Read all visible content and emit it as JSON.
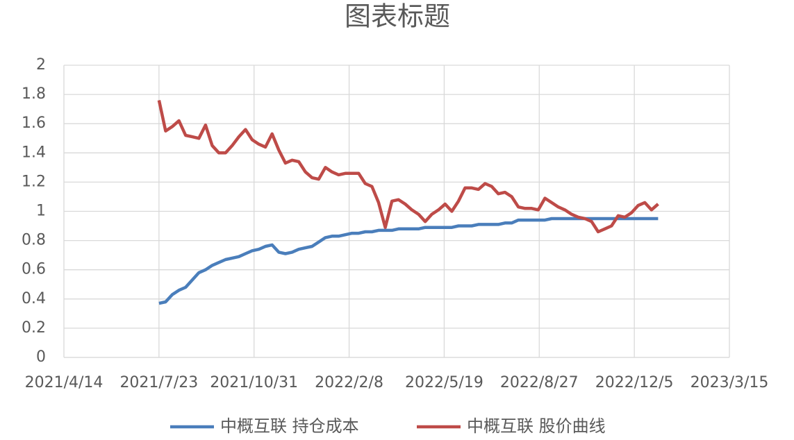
{
  "chart_data": {
    "type": "line",
    "title": "图表标题",
    "x": [
      "2021/7/23",
      "2021/7/30",
      "2021/8/6",
      "2021/8/13",
      "2021/8/20",
      "2021/8/27",
      "2021/9/3",
      "2021/9/10",
      "2021/9/17",
      "2021/9/24",
      "2021/10/1",
      "2021/10/8",
      "2021/10/15",
      "2021/10/22",
      "2021/10/29",
      "2021/11/5",
      "2021/11/12",
      "2021/11/19",
      "2021/11/26",
      "2021/12/3",
      "2021/12/10",
      "2021/12/17",
      "2021/12/24",
      "2021/12/31",
      "2022/1/7",
      "2022/1/14",
      "2022/1/21",
      "2022/1/28",
      "2022/2/4",
      "2022/2/11",
      "2022/2/18",
      "2022/2/25",
      "2022/3/4",
      "2022/3/11",
      "2022/3/18",
      "2022/3/25",
      "2022/4/1",
      "2022/4/8",
      "2022/4/15",
      "2022/4/22",
      "2022/4/29",
      "2022/5/6",
      "2022/5/13",
      "2022/5/20",
      "2022/5/27",
      "2022/6/3",
      "2022/6/10",
      "2022/6/17",
      "2022/6/24",
      "2022/7/1",
      "2022/7/8",
      "2022/7/15",
      "2022/7/22",
      "2022/7/29",
      "2022/8/5",
      "2022/8/12",
      "2022/8/19",
      "2022/8/26",
      "2022/9/2",
      "2022/9/9",
      "2022/9/16",
      "2022/9/23",
      "2022/9/30",
      "2022/10/7",
      "2022/10/14",
      "2022/10/21",
      "2022/10/28",
      "2022/11/4",
      "2022/11/11",
      "2022/11/18",
      "2022/11/25",
      "2022/12/2",
      "2022/12/9",
      "2022/12/16",
      "2022/12/23",
      "2022/12/30"
    ],
    "series": [
      {
        "name": "中概互联 持仓成本",
        "color": "#4a7ebb",
        "values": [
          0.37,
          0.38,
          0.43,
          0.46,
          0.48,
          0.53,
          0.58,
          0.6,
          0.63,
          0.65,
          0.67,
          0.68,
          0.69,
          0.71,
          0.73,
          0.74,
          0.76,
          0.77,
          0.72,
          0.71,
          0.72,
          0.74,
          0.75,
          0.76,
          0.79,
          0.82,
          0.83,
          0.83,
          0.84,
          0.85,
          0.85,
          0.86,
          0.86,
          0.87,
          0.87,
          0.87,
          0.88,
          0.88,
          0.88,
          0.88,
          0.89,
          0.89,
          0.89,
          0.89,
          0.89,
          0.9,
          0.9,
          0.9,
          0.91,
          0.91,
          0.91,
          0.91,
          0.92,
          0.92,
          0.94,
          0.94,
          0.94,
          0.94,
          0.94,
          0.95,
          0.95,
          0.95,
          0.95,
          0.95,
          0.95,
          0.95,
          0.95,
          0.95,
          0.95,
          0.95,
          0.95,
          0.95,
          0.95,
          0.95,
          0.95,
          0.95
        ]
      },
      {
        "name": "中概互联 股价曲线",
        "color": "#be4b48",
        "values": [
          1.76,
          1.55,
          1.58,
          1.62,
          1.52,
          1.51,
          1.5,
          1.59,
          1.45,
          1.4,
          1.4,
          1.45,
          1.51,
          1.56,
          1.49,
          1.46,
          1.44,
          1.53,
          1.42,
          1.33,
          1.35,
          1.34,
          1.27,
          1.23,
          1.22,
          1.3,
          1.27,
          1.25,
          1.26,
          1.26,
          1.26,
          1.19,
          1.17,
          1.06,
          0.89,
          1.07,
          1.08,
          1.05,
          1.01,
          0.98,
          0.93,
          0.98,
          1.01,
          1.05,
          1.0,
          1.07,
          1.16,
          1.16,
          1.15,
          1.19,
          1.17,
          1.12,
          1.13,
          1.1,
          1.03,
          1.02,
          1.02,
          1.01,
          1.09,
          1.06,
          1.03,
          1.01,
          0.98,
          0.96,
          0.95,
          0.93,
          0.86,
          0.88,
          0.9,
          0.97,
          0.96,
          0.99,
          1.04,
          1.06,
          1.01,
          1.05
        ]
      }
    ],
    "xlim": [
      "2021/4/14",
      "2023/3/15"
    ],
    "xticks": [
      "2021/4/14",
      "2021/7/23",
      "2021/10/31",
      "2022/2/8",
      "2022/5/19",
      "2022/8/27",
      "2022/12/5",
      "2023/3/15"
    ],
    "ylim": [
      0,
      2
    ],
    "yticks": [
      0,
      0.2,
      0.4,
      0.6,
      0.8,
      1,
      1.2,
      1.4,
      1.6,
      1.8,
      2
    ],
    "grid": true,
    "legend": "bottom"
  }
}
